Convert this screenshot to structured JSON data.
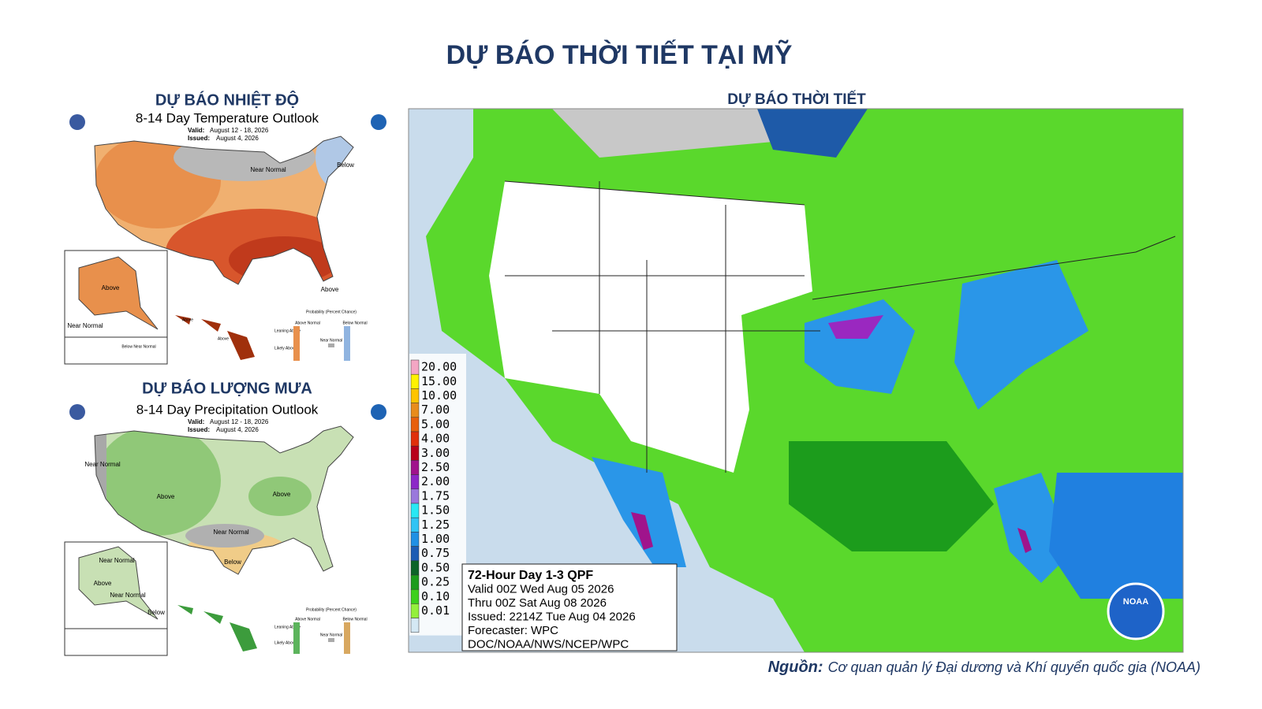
{
  "header": {
    "title": "DỰ BÁO THỜI TIẾT TẠI MỸ"
  },
  "temp_panel": {
    "heading": "DỰ BÁO NHIỆT ĐỘ",
    "title": "8-14 Day Temperature Outlook",
    "valid": "Valid:",
    "valid_date": "August 12 - 18, 2026",
    "issued": "Issued:",
    "issued_date": "August 4, 2026",
    "map_labels": [
      "Near Normal",
      "Below",
      "Above",
      "Above",
      "Near Normal",
      "Above",
      "Above",
      "Below Near Normal"
    ],
    "legend": {
      "title": "Probability (Percent Chance)",
      "above": "Above Normal",
      "below": "Below Normal",
      "leaning": "Leaning Above",
      "likely": "Likely Above",
      "near": "Near Normal"
    }
  },
  "precip_panel": {
    "heading": "DỰ BÁO LƯỢNG MƯA",
    "title": "8-14 Day Precipitation Outlook",
    "valid": "Valid:",
    "valid_date": "August 12 - 18, 2026",
    "issued": "Issued:",
    "issued_date": "August 4, 2026",
    "map_labels": [
      "Near Normal",
      "Above",
      "Above",
      "Near Normal",
      "Below",
      "Near Normal",
      "Above",
      "Near Normal",
      "Below"
    ],
    "legend": {
      "title": "Probability (Percent Chance)",
      "above": "Above Normal",
      "below": "Below Normal",
      "leaning": "Leaning Above",
      "likely": "Likely Above",
      "near": "Near Normal"
    }
  },
  "qpf_panel": {
    "heading": "DỰ BÁO THỜI TIẾT",
    "scale": [
      {
        "label": "20.00",
        "color": "#f4a6c4"
      },
      {
        "label": "15.00",
        "color": "#fff200"
      },
      {
        "label": "10.00",
        "color": "#ffc400"
      },
      {
        "label": "7.00",
        "color": "#e88c1c"
      },
      {
        "label": "5.00",
        "color": "#e8600c"
      },
      {
        "label": "4.00",
        "color": "#e0300c"
      },
      {
        "label": "3.00",
        "color": "#b8001c"
      },
      {
        "label": "2.50",
        "color": "#a0148c"
      },
      {
        "label": "2.00",
        "color": "#8c28c8"
      },
      {
        "label": "1.75",
        "color": "#9a78dc"
      },
      {
        "label": "1.50",
        "color": "#28e8f4"
      },
      {
        "label": "1.25",
        "color": "#30c4f4"
      },
      {
        "label": "1.00",
        "color": "#2090e4"
      },
      {
        "label": "0.75",
        "color": "#1c5cb4"
      },
      {
        "label": "0.50",
        "color": "#0c6428"
      },
      {
        "label": "0.25",
        "color": "#1c9c1c"
      },
      {
        "label": "0.10",
        "color": "#3cd01c"
      },
      {
        "label": "0.01",
        "color": "#94f03c"
      }
    ],
    "box": [
      "72-Hour Day 1-3 QPF",
      "Valid 00Z Wed Aug 05 2026",
      "Thru 00Z Sat Aug 08 2026",
      "Issued: 2214Z Tue Aug 04 2026",
      "Forecaster: WPC",
      "DOC/NOAA/NWS/NCEP/WPC"
    ],
    "logo": "NOAA"
  },
  "footer": {
    "source_label": "Nguồn:",
    "source_text": "Cơ quan quản lý Đại dương và Khí quyển quốc gia (NOAA)"
  }
}
